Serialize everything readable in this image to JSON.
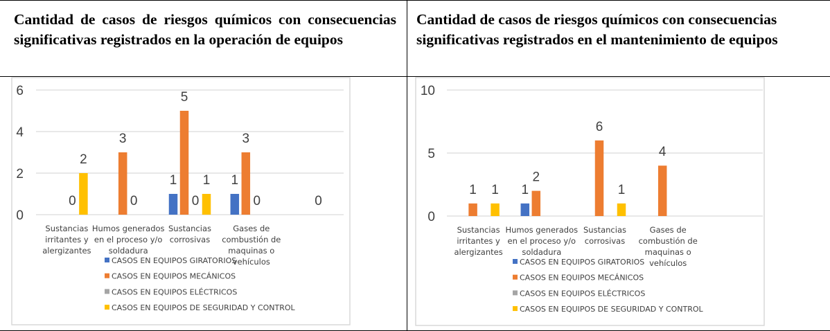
{
  "colors": {
    "giratorios": "#4472C4",
    "mecanicos": "#ED7D31",
    "electricos": "#A5A5A5",
    "seguridad": "#FFC000"
  },
  "chart_data": [
    {
      "type": "bar",
      "title": "Cantidad de casos de riesgos químicos con consecuencias significativas registrados en la operación de equipos",
      "categories": [
        "Sustancias irritantes y alergizantes",
        "Humos generados en el proceso y/o soldadura",
        "Sustancias corrosivas",
        "Gases de combustión de maquinas o vehículos",
        ""
      ],
      "category_lines": [
        [
          "Sustancias",
          "irritantes y",
          "alergizantes"
        ],
        [
          "Humos generados",
          "en el proceso y/o",
          "soldadura"
        ],
        [
          "Sustancias",
          "corrosivas"
        ],
        [
          "Gases de",
          "combustión de",
          "maquinas o",
          "vehículos"
        ],
        []
      ],
      "ylim": [
        0,
        6
      ],
      "yticks": [
        0,
        2,
        4,
        6
      ],
      "grid": true,
      "legend": "bottom",
      "series": [
        {
          "name": "CASOS EN EQUIPOS GIRATORIOS",
          "values": [
            null,
            null,
            1,
            1,
            null
          ]
        },
        {
          "name": "CASOS EN EQUIPOS MECÁNICOS",
          "values": [
            null,
            3,
            5,
            3,
            null
          ]
        },
        {
          "name": "CASOS EN EQUIPOS ELÉCTRICOS",
          "values": [
            0,
            0,
            0,
            0,
            0
          ]
        },
        {
          "name": "CASOS EN EQUIPOS DE SEGURIDAD Y CONTROL",
          "values": [
            2,
            null,
            1,
            null,
            null
          ]
        }
      ]
    },
    {
      "type": "bar",
      "title": "Cantidad de casos de riesgos químicos con consecuencias significativas registrados en el mantenimiento de equipos",
      "categories": [
        "Sustancias irritantes y alergizantes",
        "Humos generados en el proceso y/o soldadura",
        "Sustancias corrosivas",
        "Gases de combustión de maquinas o vehículos",
        ""
      ],
      "category_lines": [
        [
          "Sustancias",
          "irritantes y",
          "alergizantes"
        ],
        [
          "Humos generados",
          "en el proceso y/o",
          "soldadura"
        ],
        [
          "Sustancias",
          "corrosivas"
        ],
        [
          "Gases de",
          "combustión de",
          "maquinas o",
          "vehículos"
        ],
        []
      ],
      "ylim": [
        0,
        10
      ],
      "yticks": [
        0,
        5,
        10
      ],
      "grid": true,
      "legend": "bottom",
      "series": [
        {
          "name": "CASOS EN EQUIPOS GIRATORIOS",
          "values": [
            null,
            1,
            null,
            null,
            null
          ]
        },
        {
          "name": "CASOS EN EQUIPOS MECÁNICOS",
          "values": [
            1,
            2,
            6,
            4,
            null
          ]
        },
        {
          "name": "CASOS EN EQUIPOS ELÉCTRICOS",
          "values": [
            null,
            null,
            null,
            null,
            null
          ]
        },
        {
          "name": "CASOS EN EQUIPOS DE SEGURIDAD Y CONTROL",
          "values": [
            1,
            null,
            1,
            null,
            null
          ]
        }
      ]
    }
  ]
}
